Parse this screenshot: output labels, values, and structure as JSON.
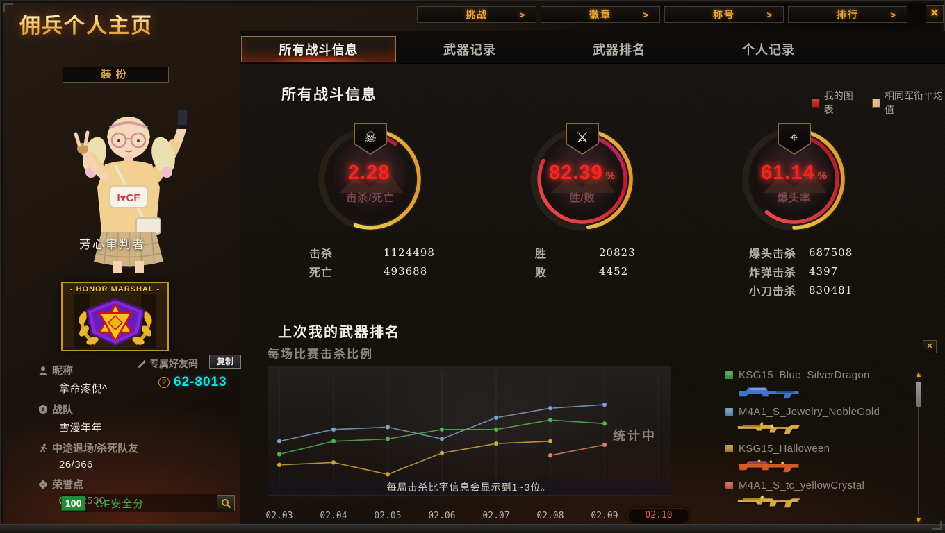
{
  "window": {
    "title": "佣兵个人主页",
    "close": "✕"
  },
  "top_nav": {
    "arrow": ">",
    "items": [
      {
        "label": "挑战"
      },
      {
        "label": "徽章"
      },
      {
        "label": "称号"
      },
      {
        "label": "排行"
      }
    ]
  },
  "tabs": [
    {
      "label": "所有战斗信息",
      "active": true
    },
    {
      "label": "武器记录",
      "active": false
    },
    {
      "label": "武器排名",
      "active": false
    },
    {
      "label": "个人记录",
      "active": false
    }
  ],
  "sidebar": {
    "dress_button": "装扮",
    "character_name": "芳心审判者",
    "badge_title": "- HONOR MARSHAL -",
    "nickname_label": "昵称",
    "nickname": "拿命疼倪^",
    "friend_code_label": "专属好友码",
    "copy_button": "复制",
    "friend_code_help": "?",
    "friend_code": "62-8013",
    "clan_label": "战队",
    "clan": "雪漫年年",
    "quit_label": "中途退场/杀死队友",
    "quit_value": "26/366",
    "honor_label": "荣誉点",
    "honor_value": "0/132530",
    "safety_score": "100",
    "safety_label": "CF安全分"
  },
  "main": {
    "section_title": "所有战斗信息",
    "legend": [
      {
        "label": "我的图表",
        "color": "#c2312b"
      },
      {
        "label": "相同军衔平均值",
        "color": "#d6cc6e"
      }
    ],
    "gauges": [
      {
        "icon": "skull-icon",
        "glyph": "☠",
        "value": "2.28",
        "unit": "",
        "label": "击杀/死亡",
        "my_pct": 10,
        "avg_pct": 55
      },
      {
        "icon": "crossed-rifles-icon",
        "glyph": "⚔",
        "value": "82.39",
        "unit": "%",
        "label": "胜/败",
        "my_pct": 82,
        "avg_pct": 48
      },
      {
        "icon": "sniper-rifle-icon",
        "glyph": "⌖",
        "value": "61.14",
        "unit": "%",
        "label": "爆头率",
        "my_pct": 61,
        "avg_pct": 50
      }
    ],
    "stats_columns": [
      {
        "rows": [
          {
            "label": "击杀",
            "value": "1124498"
          },
          {
            "label": "死亡",
            "value": "493688"
          }
        ]
      },
      {
        "rows": [
          {
            "label": "胜",
            "value": "20823"
          },
          {
            "label": "败",
            "value": "4452"
          }
        ]
      },
      {
        "rows": [
          {
            "label": "爆头击杀",
            "value": "687508"
          },
          {
            "label": "炸弹击杀",
            "value": "4397"
          },
          {
            "label": "小刀击杀",
            "value": "830481"
          }
        ]
      }
    ],
    "weapon_rank": {
      "title": "上次我的武器排名",
      "subtitle": "每场比赛击杀比例",
      "status": "统计中",
      "note": "每局击杀比率信息会显示到1~3位。"
    }
  },
  "chart_data": {
    "type": "line",
    "x_labels": [
      "02.03",
      "02.04",
      "02.05",
      "02.06",
      "02.07",
      "02.08",
      "02.09",
      "02.10"
    ],
    "highlighted_label": "02.10",
    "values_normalized": true,
    "ylim": [
      0,
      1
    ],
    "grid": "vertical-only",
    "legend_position": "right-panel",
    "series": [
      {
        "name": "M4A1_S_Jewelry_NobleGold",
        "color": "#7ba3cd",
        "values": [
          0.46,
          0.56,
          0.58,
          0.48,
          0.66,
          0.74,
          0.77,
          null
        ]
      },
      {
        "name": "KSG15_Blue_SilverDragon",
        "color": "#57b055",
        "values": [
          0.35,
          0.46,
          0.48,
          0.56,
          0.56,
          0.64,
          0.61,
          null
        ]
      },
      {
        "name": "KSG15_Halloween",
        "color": "#d0a443",
        "values": [
          0.26,
          0.28,
          0.18,
          0.36,
          0.44,
          0.46,
          null,
          null
        ]
      },
      {
        "name": "M4A1_S_tc_yellowCrystal",
        "color": "#dd8168",
        "values": [
          null,
          null,
          null,
          null,
          null,
          0.34,
          0.43,
          null
        ]
      }
    ],
    "title": "每场比赛击杀比例",
    "status": "统计中",
    "note": "每局击杀比率信息会显示到1~3位。"
  },
  "weapon_panel": {
    "close": "✕",
    "items": [
      {
        "name": "KSG15_Blue_SilverDragon",
        "marker_color": "#57b055",
        "gun_type": "shotgun",
        "gun_color": "#3f74c8"
      },
      {
        "name": "M4A1_S_Jewelry_NobleGold",
        "marker_color": "#7ba3cd",
        "gun_type": "rifle",
        "gun_color": "#d8aa3f"
      },
      {
        "name": "KSG15_Halloween",
        "marker_color": "#c7a24b",
        "gun_type": "shotgun",
        "gun_color": "#d45a28"
      },
      {
        "name": "M4A1_S_tc_yellowCrystal",
        "marker_color": "#d9705f",
        "gun_type": "rifle",
        "gun_color": "#d8aa3f"
      }
    ],
    "scrollbar": {
      "up": "▲",
      "down": "▼"
    }
  }
}
